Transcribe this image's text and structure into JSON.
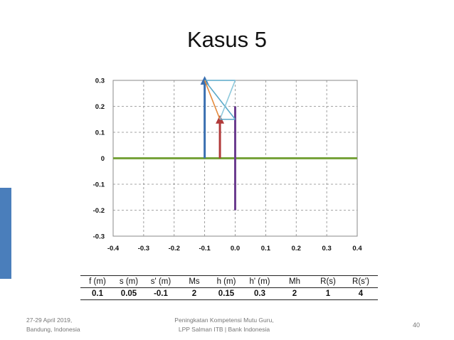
{
  "slide": {
    "title": "Kasus 5",
    "footer_left_line1": "27-29 April 2019,",
    "footer_left_line2": "Bandung, Indonesia",
    "footer_center_line1": "Peningkatan Kompetensi Mutu Guru,",
    "footer_center_line2": "LPP Salman ITB | Bank Indonesia",
    "page_number": "40"
  },
  "table": {
    "headers": [
      "f (m)",
      "s (m)",
      "s' (m)",
      "Ms",
      "h (m)",
      "h' (m)",
      "Mh",
      "R(s)",
      "R(s')"
    ],
    "values": [
      "0.1",
      "0.05",
      "-0.1",
      "2",
      "0.15",
      "0.3",
      "2",
      "1",
      "4"
    ]
  },
  "chart_data": {
    "type": "line",
    "xlim": [
      -0.4,
      0.4
    ],
    "ylim": [
      -0.3,
      0.3
    ],
    "x_ticks": [
      "-0.4",
      "-0.3",
      "-0.2",
      "-0.1",
      "0.0",
      "0.1",
      "0.2",
      "0.3",
      "0.4"
    ],
    "y_ticks": [
      "0.3",
      "0.2",
      "0.1",
      "0",
      "-0.1",
      "-0.2",
      "-0.3"
    ],
    "grid": true,
    "colors": {
      "axis": "#77a33b",
      "image_arrow": "#3a6fb0",
      "object_arrow": "#b13a3a",
      "lens": "#6c3d8f",
      "ray_orange": "#e48a3b",
      "ray_teal": "#5aa9c9",
      "ray_light": "#8ec9dc"
    },
    "series": [
      {
        "role": "optical-axis",
        "color": "axis",
        "x": [
          -0.4,
          0.4
        ],
        "y": [
          0,
          0
        ]
      },
      {
        "role": "lens",
        "color": "lens",
        "x": [
          0,
          0
        ],
        "y": [
          -0.2,
          0.2
        ]
      },
      {
        "role": "object-arrow",
        "color": "object_arrow",
        "x": [
          -0.05,
          -0.05
        ],
        "y": [
          0,
          0.15
        ]
      },
      {
        "role": "image-arrow",
        "color": "image_arrow",
        "x": [
          -0.1,
          -0.1
        ],
        "y": [
          0,
          0.3
        ]
      },
      {
        "role": "ray",
        "color": "ray_teal",
        "x": [
          -0.1,
          0
        ],
        "y": [
          0.3,
          0.3
        ]
      },
      {
        "role": "ray",
        "color": "ray_teal",
        "x": [
          -0.1,
          0
        ],
        "y": [
          0.3,
          0.15
        ]
      },
      {
        "role": "ray",
        "color": "ray_orange",
        "x": [
          -0.1,
          -0.05
        ],
        "y": [
          0.3,
          0.15
        ]
      },
      {
        "role": "ray",
        "color": "ray_teal",
        "x": [
          -0.05,
          0
        ],
        "y": [
          0.15,
          0.15
        ]
      },
      {
        "role": "ray",
        "color": "ray_light",
        "x": [
          -0.05,
          0
        ],
        "y": [
          0.15,
          0.3
        ]
      }
    ]
  }
}
